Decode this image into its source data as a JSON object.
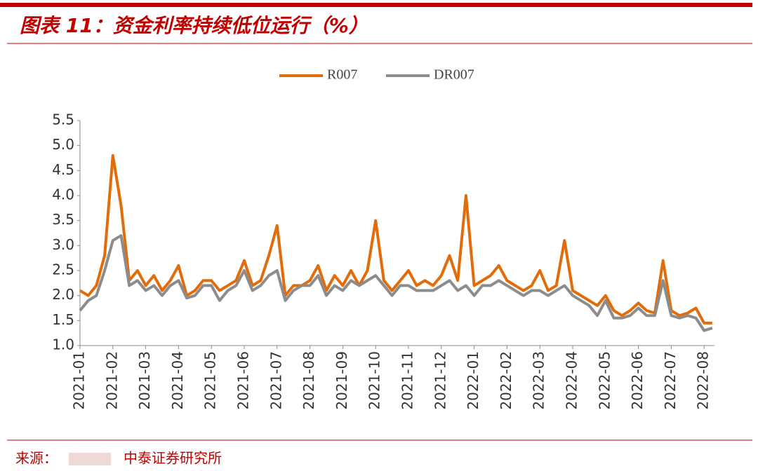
{
  "chart_data": {
    "type": "line",
    "title": "图表 11：资金利率持续低位运行（%）",
    "source_label": "来源：",
    "source": "中泰证券研究所",
    "categories": [
      "2021-01",
      null,
      null,
      null,
      "2021-02",
      null,
      null,
      null,
      "2021-03",
      null,
      null,
      null,
      "2021-04",
      null,
      null,
      null,
      "2021-05",
      null,
      null,
      null,
      "2021-06",
      null,
      null,
      null,
      "2021-07",
      null,
      null,
      null,
      "2021-08",
      null,
      null,
      null,
      "2021-09",
      null,
      null,
      null,
      "2021-10",
      null,
      null,
      null,
      "2021-11",
      null,
      null,
      null,
      "2021-12",
      null,
      null,
      null,
      "2022-01",
      null,
      null,
      null,
      "2022-02",
      null,
      null,
      null,
      "2022-03",
      null,
      null,
      null,
      "2022-04",
      null,
      null,
      null,
      "2022-05",
      null,
      null,
      null,
      "2022-06",
      null,
      null,
      null,
      "2022-07",
      null,
      null,
      null,
      "2022-08",
      null
    ],
    "series": [
      {
        "name": "R007",
        "color": "#e36c0a",
        "values": [
          2.1,
          2.0,
          2.2,
          2.8,
          4.8,
          3.8,
          2.3,
          2.5,
          2.2,
          2.4,
          2.1,
          2.3,
          2.6,
          2.0,
          2.1,
          2.3,
          2.3,
          2.1,
          2.2,
          2.3,
          2.7,
          2.2,
          2.3,
          2.8,
          3.4,
          2.0,
          2.2,
          2.2,
          2.3,
          2.6,
          2.1,
          2.4,
          2.2,
          2.5,
          2.2,
          2.5,
          3.5,
          2.3,
          2.1,
          2.3,
          2.5,
          2.2,
          2.3,
          2.2,
          2.4,
          2.8,
          2.3,
          4.0,
          2.2,
          2.3,
          2.4,
          2.6,
          2.3,
          2.2,
          2.1,
          2.2,
          2.5,
          2.1,
          2.2,
          3.1,
          2.1,
          2.0,
          1.9,
          1.8,
          2.0,
          1.7,
          1.6,
          1.7,
          1.85,
          1.7,
          1.65,
          2.7,
          1.7,
          1.6,
          1.65,
          1.75,
          1.45,
          1.45
        ]
      },
      {
        "name": "DR007",
        "color": "#8c8c8c",
        "values": [
          1.7,
          1.9,
          2.0,
          2.5,
          3.1,
          3.2,
          2.2,
          2.3,
          2.1,
          2.2,
          2.0,
          2.2,
          2.3,
          1.95,
          2.0,
          2.2,
          2.2,
          1.9,
          2.1,
          2.2,
          2.5,
          2.1,
          2.2,
          2.4,
          2.5,
          1.9,
          2.1,
          2.2,
          2.2,
          2.4,
          2.0,
          2.2,
          2.1,
          2.3,
          2.2,
          2.3,
          2.4,
          2.2,
          2.0,
          2.2,
          2.2,
          2.1,
          2.1,
          2.1,
          2.2,
          2.3,
          2.1,
          2.2,
          2.0,
          2.2,
          2.2,
          2.3,
          2.2,
          2.1,
          2.0,
          2.1,
          2.1,
          2.0,
          2.1,
          2.2,
          2.0,
          1.9,
          1.8,
          1.6,
          1.9,
          1.55,
          1.55,
          1.6,
          1.75,
          1.6,
          1.6,
          2.3,
          1.6,
          1.55,
          1.6,
          1.55,
          1.3,
          1.35
        ]
      }
    ],
    "ylim": [
      1,
      5.5
    ],
    "yticks": [
      {
        "value": 1,
        "label": "1.0"
      },
      1.5,
      {
        "value": 2,
        "label": "2.0"
      },
      2.5,
      {
        "value": 3,
        "label": "3.0"
      },
      3.5,
      {
        "value": 4,
        "label": "4.0"
      },
      4.5,
      {
        "value": 5,
        "label": "5.0"
      },
      5.5
    ],
    "legend": "top"
  }
}
